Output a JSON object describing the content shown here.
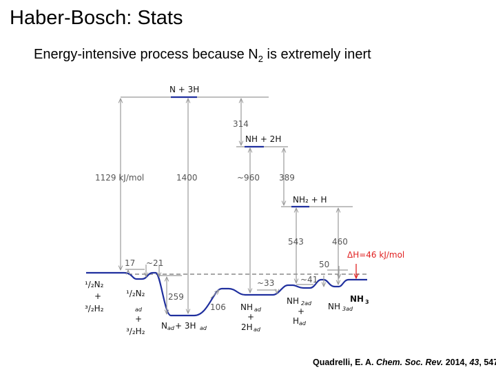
{
  "slide": {
    "title": "Haber-Bosch: Stats",
    "subtitle_prefix": "Energy-intensive process because N",
    "subtitle_sub": "2",
    "subtitle_suffix": " is extremely inert"
  },
  "citation": {
    "authors": "Quadrelli, E. A.",
    "journal": "Chem. Soc. Rev.",
    "year": "2014",
    "volume": "43",
    "pages": "547."
  },
  "diagram": {
    "species": {
      "n_3h": "N + 3H",
      "nh_2h": "NH + 2H",
      "nh2_h": "NH₂ + H",
      "half_n2": "¹/₂N₂",
      "plus": "+",
      "three_half_h2": "³/₂H₂",
      "half_n2_ad_top": "¹/₂N₂",
      "ad": "ad",
      "three_half_h2_b": "³/₂H₂",
      "n_ad": "N",
      "plus_3h": " + 3H",
      "nh_ad": "NH",
      "two_h": "2H",
      "nh2_ad": "NH",
      "nh2_sub": "2ad",
      "h_ad": "H",
      "nh3_ad": "NH",
      "nh3_ad_sub": "3ad",
      "nh3": "NH",
      "nh3_sub": "3"
    },
    "energies": {
      "e1129": "1129 kJ/mol",
      "e1400": "1400",
      "e314": "314",
      "e960": "~960",
      "e389": "389",
      "e543": "543",
      "e460": "460",
      "e17": "17",
      "e21": "~21",
      "e259": "259",
      "e106": "106",
      "e33": "~33",
      "e41": "~41",
      "e50": "50"
    },
    "delta_h": "ΔH=46 kJ/mol",
    "colors": {
      "profile": "#1f2f9e",
      "arrow": "#999999",
      "delta": "#e02020"
    }
  }
}
